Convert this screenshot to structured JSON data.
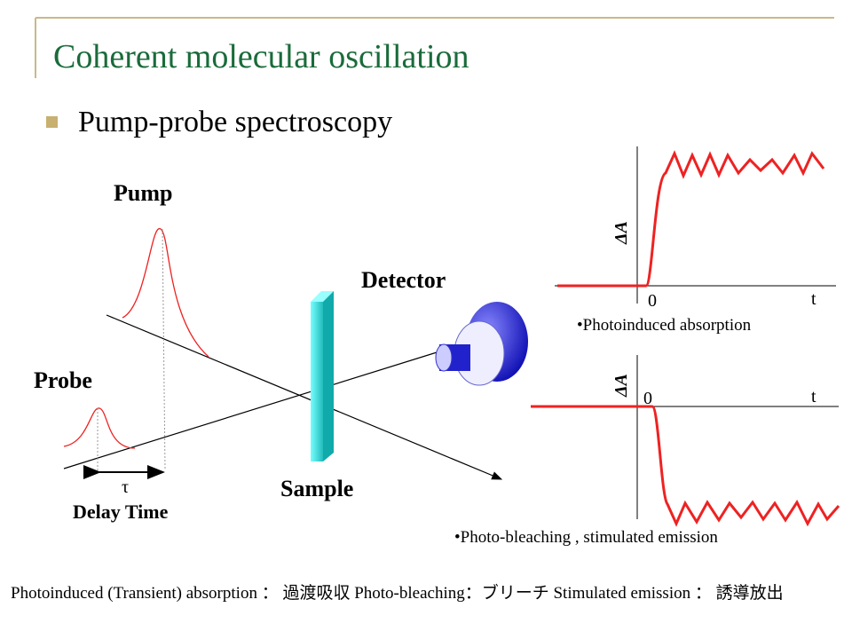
{
  "title": "Coherent molecular oscillation",
  "bullet": "Pump-probe spectroscopy",
  "diagram": {
    "pump": "Pump",
    "probe": "Probe",
    "detector": "Detector",
    "sample": "Sample",
    "tau": "τ",
    "delay": "Delay Time"
  },
  "graphs": [
    {
      "ylabel": "ΔA",
      "origin": "0",
      "xlabel": "t",
      "caption": "•Photoinduced absorption"
    },
    {
      "ylabel": "ΔA",
      "origin": "0",
      "xlabel": "t",
      "caption": "•Photo-bleaching , stimulated emission"
    }
  ],
  "footer": "Photoinduced (Transient) absorption ： 過渡吸収 Photo-bleaching：ブリーチ Stimulated emission ： 誘導放出"
}
